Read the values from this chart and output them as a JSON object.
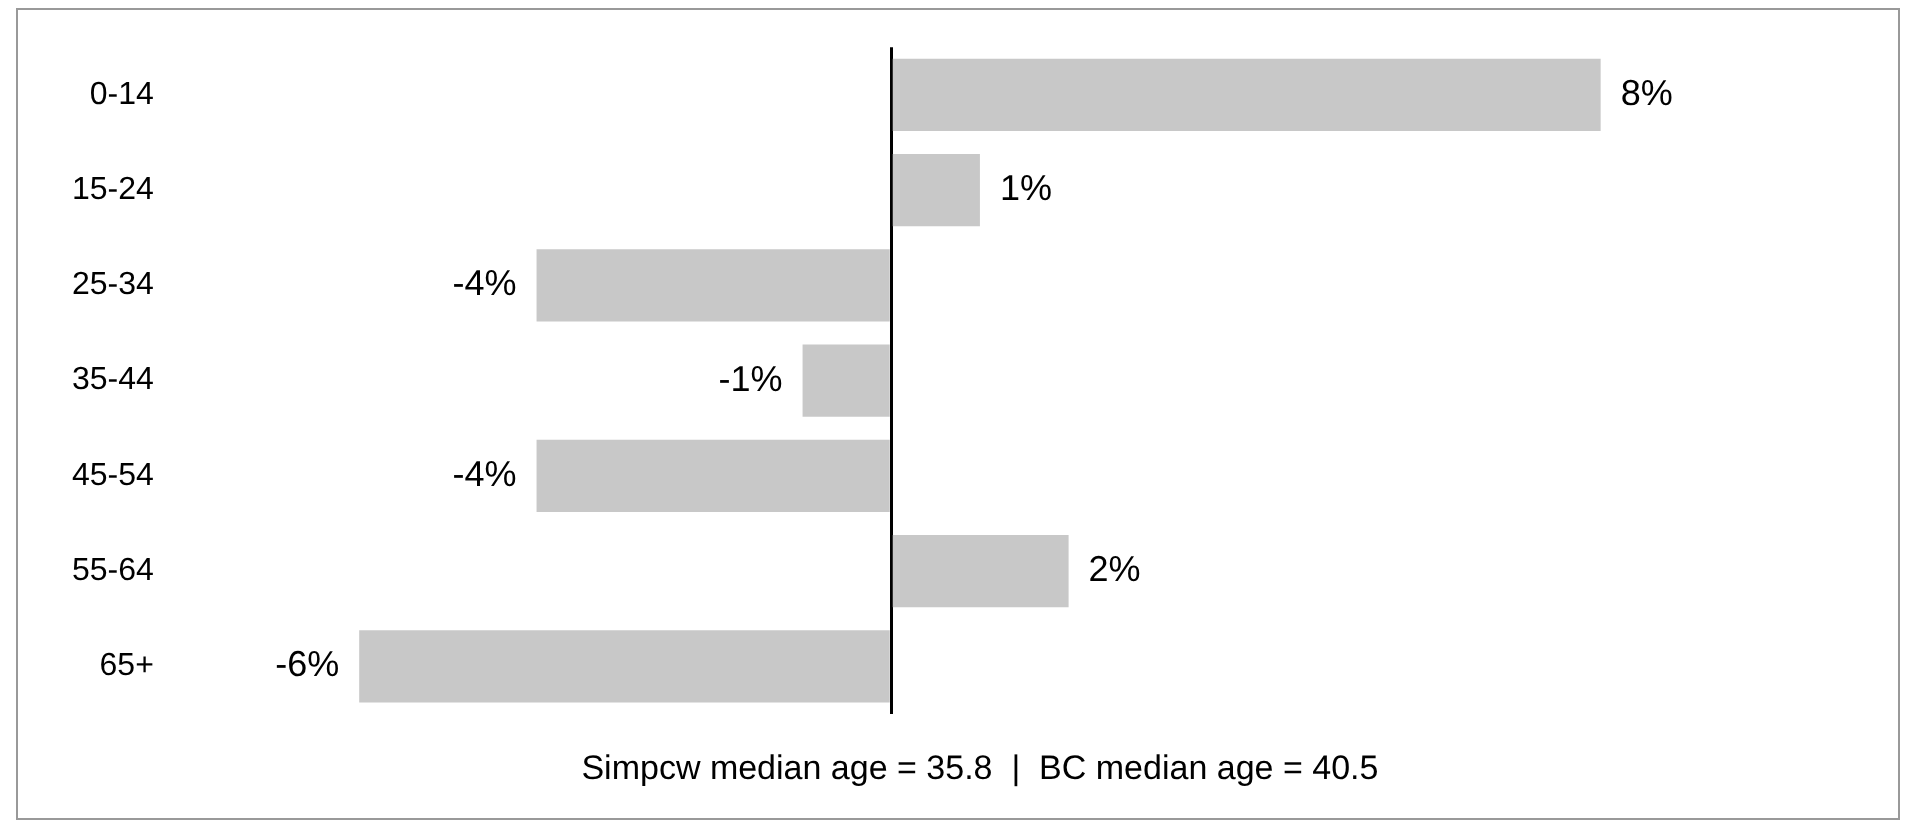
{
  "chart_data": {
    "type": "bar",
    "orientation": "horizontal",
    "categories": [
      "0-14",
      "15-24",
      "25-34",
      "35-44",
      "45-54",
      "55-64",
      "65+"
    ],
    "values": [
      8,
      1,
      -4,
      -1,
      -4,
      2,
      -6
    ],
    "value_labels": [
      "8%",
      "1%",
      "-4%",
      "-1%",
      "-4%",
      "2%",
      "-6%"
    ],
    "color": "#c8c8c8",
    "tick_labels": "y",
    "annotations": [
      "Simpcw median age = 35.8  |  BC median age = 40.5"
    ]
  }
}
